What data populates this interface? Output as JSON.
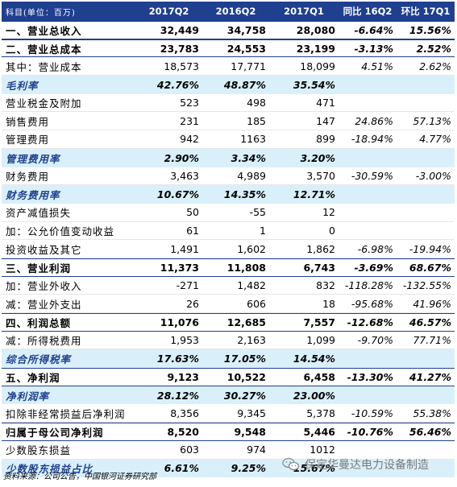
{
  "header": {
    "item": "科目(单位：百万)",
    "col1": "2017Q2",
    "col2": "2016Q2",
    "col3": "2017Q1",
    "col4": "同比 16Q2",
    "col5": "环比 17Q1"
  },
  "rows": [
    {
      "label": "一、营业总收入",
      "v1": "32,449",
      "v2": "34,758",
      "v3": "28,080",
      "v4": "-6.64%",
      "v5": "15.56%"
    },
    {
      "label": "二、营业总成本",
      "v1": "23,783",
      "v2": "24,553",
      "v3": "23,199",
      "v4": "-3.13%",
      "v5": "2.52%"
    },
    {
      "label": "其中：营业成本",
      "v1": "18,573",
      "v2": "17,771",
      "v3": "18,099",
      "v4": "4.51%",
      "v5": "2.62%"
    },
    {
      "label": "毛利率",
      "v1": "42.76%",
      "v2": "48.87%",
      "v3": "35.54%",
      "v4": "",
      "v5": ""
    },
    {
      "label": "营业税金及附加",
      "v1": "523",
      "v2": "498",
      "v3": "471",
      "v4": "",
      "v5": ""
    },
    {
      "label": "销售费用",
      "v1": "231",
      "v2": "185",
      "v3": "147",
      "v4": "24.86%",
      "v5": "57.13%"
    },
    {
      "label": "管理费用",
      "v1": "942",
      "v2": "1163",
      "v3": "899",
      "v4": "-18.94%",
      "v5": "4.77%"
    },
    {
      "label": "管理费用率",
      "v1": "2.90%",
      "v2": "3.34%",
      "v3": "3.20%",
      "v4": "",
      "v5": ""
    },
    {
      "label": "财务费用",
      "v1": "3,463",
      "v2": "4,989",
      "v3": "3,570",
      "v4": "-30.59%",
      "v5": "-3.00%"
    },
    {
      "label": "财务费用率",
      "v1": "10.67%",
      "v2": "14.35%",
      "v3": "12.71%",
      "v4": "",
      "v5": ""
    },
    {
      "label": "资产减值损失",
      "v1": "50",
      "v2": "-55",
      "v3": "12",
      "v4": "",
      "v5": ""
    },
    {
      "label": "加：公允价值变动收益",
      "v1": "61",
      "v2": "1",
      "v3": "0",
      "v4": "",
      "v5": ""
    },
    {
      "label": "投资收益及其它",
      "v1": "1,491",
      "v2": "1,602",
      "v3": "1,862",
      "v4": "-6.98%",
      "v5": "-19.94%"
    },
    {
      "label": "三、营业利润",
      "v1": "11,373",
      "v2": "11,808",
      "v3": "6,743",
      "v4": "-3.69%",
      "v5": "68.67%"
    },
    {
      "label": "加：营业外收入",
      "v1": "-271",
      "v2": "1,482",
      "v3": "832",
      "v4": "-118.28%",
      "v5": "-132.55%"
    },
    {
      "label": "减：营业外支出",
      "v1": "26",
      "v2": "606",
      "v3": "18",
      "v4": "-95.68%",
      "v5": "41.96%"
    },
    {
      "label": "四、利润总额",
      "v1": "11,076",
      "v2": "12,685",
      "v3": "7,557",
      "v4": "-12.68%",
      "v5": "46.57%"
    },
    {
      "label": "减：所得税费用",
      "v1": "1,953",
      "v2": "2,163",
      "v3": "1,099",
      "v4": "-9.70%",
      "v5": "77.71%"
    },
    {
      "label": "综合所得税率",
      "v1": "17.63%",
      "v2": "17.05%",
      "v3": "14.54%",
      "v4": "",
      "v5": ""
    },
    {
      "label": "五、净利润",
      "v1": "9,123",
      "v2": "10,522",
      "v3": "6,458",
      "v4": "-13.30%",
      "v5": "41.27%"
    },
    {
      "label": "净利润率",
      "v1": "28.12%",
      "v2": "30.27%",
      "v3": "23.00%",
      "v4": "",
      "v5": ""
    },
    {
      "label": "扣除非经常损益后净利润",
      "v1": "8,356",
      "v2": "9,345",
      "v3": "5,378",
      "v4": "-10.59%",
      "v5": "55.38%"
    },
    {
      "label": "归属于母公司净利润",
      "v1": "8,520",
      "v2": "9,548",
      "v3": "5,446",
      "v4": "-10.76%",
      "v5": "56.46%"
    },
    {
      "label": "少数股东损益",
      "v1": "603",
      "v2": "974",
      "v3": "1012",
      "v4": "",
      "v5": ""
    },
    {
      "label": "少数股东损益占比",
      "v1": "6.61%",
      "v2": "9.25%",
      "v3": "15.67%",
      "v4": "",
      "v5": ""
    }
  ],
  "source": "资料来源：公司公告，中国银河证券研究部",
  "watermark": "保定华曼达电力设备制造",
  "watermark_icon": "wechat-icon"
}
